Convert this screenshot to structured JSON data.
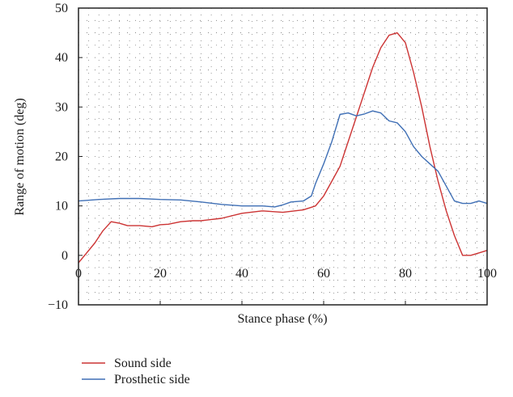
{
  "chart_data": {
    "type": "line",
    "title": "",
    "xlabel": "Stance phase (%)",
    "ylabel": "Range of motion (deg)",
    "xlim": [
      0,
      100
    ],
    "ylim": [
      -10,
      50
    ],
    "xticks": [
      0,
      20,
      40,
      60,
      80,
      100
    ],
    "yticks": [
      -10,
      0,
      10,
      20,
      30,
      40,
      50
    ],
    "xtick_labels": [
      "0",
      "20",
      "40",
      "60",
      "80",
      "100"
    ],
    "ytick_labels": [
      "−10",
      "0",
      "10",
      "20",
      "30",
      "40",
      "50"
    ],
    "grid": "dotted",
    "legend_position": "bottom-left, outside plot",
    "series": [
      {
        "name": "Sound side",
        "color": "#cc3333",
        "x": [
          0,
          2,
          4,
          6,
          8,
          10,
          12,
          15,
          18,
          20,
          22,
          25,
          28,
          30,
          35,
          40,
          45,
          50,
          55,
          58,
          60,
          62,
          64,
          66,
          68,
          70,
          72,
          74,
          76,
          78,
          80,
          82,
          84,
          86,
          88,
          90,
          92,
          94,
          96,
          98,
          100
        ],
        "values": [
          -1.5,
          0.5,
          2.5,
          5.0,
          6.8,
          6.5,
          6.0,
          6.0,
          5.8,
          6.2,
          6.3,
          6.8,
          7.0,
          7.0,
          7.5,
          8.5,
          9.0,
          8.7,
          9.2,
          10.0,
          12.0,
          15.0,
          18.0,
          23.0,
          28.0,
          33.0,
          38.0,
          42.0,
          44.5,
          45.0,
          43.0,
          37.0,
          30.0,
          22.0,
          15.0,
          9.0,
          4.0,
          0.0,
          0.0,
          0.5,
          1.0
        ]
      },
      {
        "name": "Prosthetic side",
        "color": "#3f6fb5",
        "x": [
          0,
          5,
          10,
          15,
          20,
          25,
          30,
          35,
          40,
          45,
          48,
          50,
          52,
          55,
          57,
          58,
          60,
          62,
          64,
          66,
          68,
          70,
          72,
          74,
          76,
          78,
          80,
          82,
          84,
          86,
          88,
          90,
          92,
          94,
          96,
          98,
          100
        ],
        "values": [
          11.0,
          11.3,
          11.5,
          11.5,
          11.3,
          11.2,
          10.8,
          10.3,
          10.0,
          10.0,
          9.8,
          10.2,
          10.8,
          11.0,
          12.0,
          14.5,
          18.5,
          23.0,
          28.5,
          28.8,
          28.2,
          28.6,
          29.2,
          28.8,
          27.2,
          26.8,
          25.0,
          22.0,
          20.0,
          18.5,
          17.0,
          14.0,
          11.0,
          10.5,
          10.5,
          11.0,
          10.5
        ]
      }
    ]
  }
}
